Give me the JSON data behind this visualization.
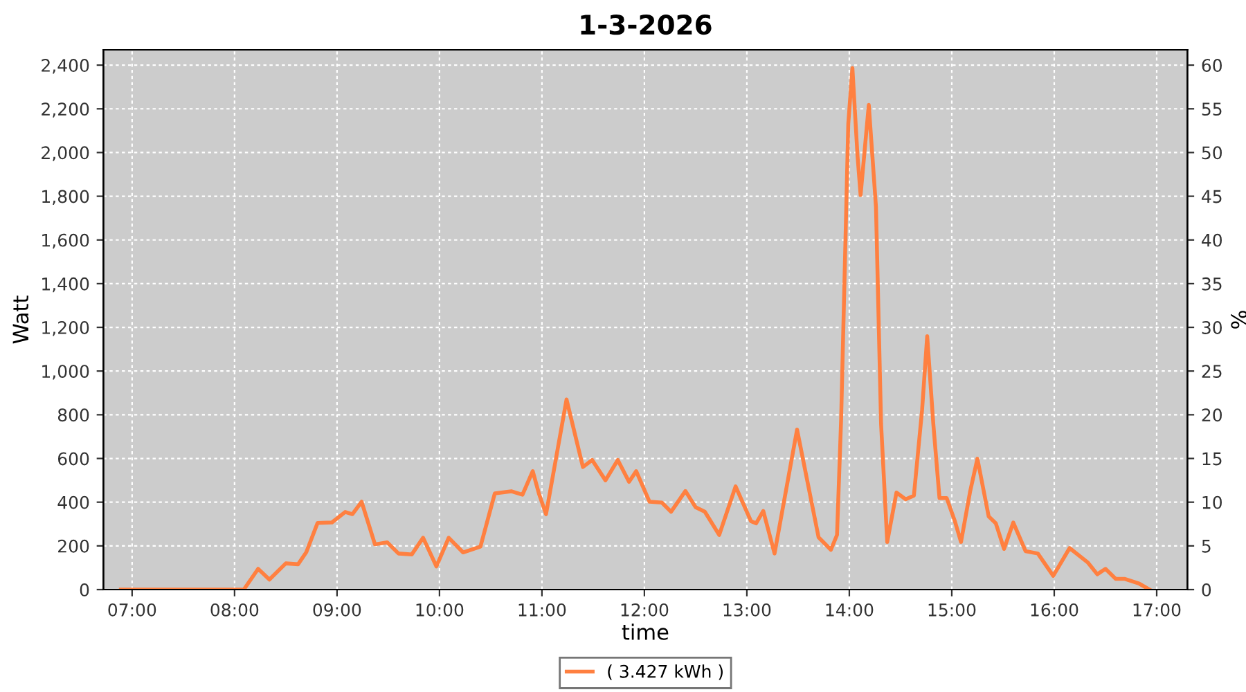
{
  "chart_data": {
    "type": "line",
    "title": "1-3-2026",
    "xlabel": "time",
    "ylabel": "Watt",
    "y2label": "%",
    "x": [
      6.89,
      8.05,
      8.09,
      8.23,
      8.34,
      8.5,
      8.62,
      8.7,
      8.81,
      8.95,
      9.08,
      9.15,
      9.24,
      9.37,
      9.49,
      9.6,
      9.73,
      9.84,
      9.97,
      10.09,
      10.23,
      10.4,
      10.54,
      10.7,
      10.81,
      10.91,
      10.97,
      11.04,
      11.24,
      11.4,
      11.49,
      11.62,
      11.74,
      11.85,
      11.92,
      12.05,
      12.17,
      12.26,
      12.4,
      12.5,
      12.59,
      12.73,
      12.89,
      13.04,
      13.09,
      13.16,
      13.27,
      13.49,
      13.7,
      13.82,
      13.88,
      13.92,
      13.99,
      14.03,
      14.08,
      14.11,
      14.19,
      14.26,
      14.31,
      14.37,
      14.46,
      14.55,
      14.63,
      14.71,
      14.76,
      14.82,
      14.88,
      14.95,
      15.03,
      15.09,
      15.18,
      15.25,
      15.36,
      15.43,
      15.51,
      15.6,
      15.72,
      15.84,
      15.99,
      16.15,
      16.33,
      16.42,
      16.5,
      16.6,
      16.69,
      16.83,
      16.93
    ],
    "series": [
      {
        "name": "( 3.427 kWh )",
        "color": "#ff8040",
        "values": [
          0,
          0,
          0,
          95,
          46,
          120,
          116,
          171,
          305,
          307,
          355,
          345,
          402,
          207,
          216,
          165,
          161,
          237,
          106,
          237,
          170,
          197,
          440,
          450,
          434,
          542,
          440,
          345,
          870,
          561,
          593,
          500,
          593,
          493,
          542,
          402,
          398,
          356,
          451,
          377,
          356,
          250,
          472,
          313,
          303,
          360,
          165,
          732,
          239,
          182,
          250,
          779,
          2133,
          2387,
          1985,
          1805,
          2218,
          1752,
          757,
          218,
          444,
          413,
          430,
          821,
          1160,
          757,
          419,
          419,
          313,
          218,
          451,
          599,
          335,
          303,
          186,
          307,
          176,
          165,
          63,
          190,
          123,
          70,
          95,
          49,
          49,
          27,
          0
        ]
      }
    ],
    "xlim": [
      6.72,
      17.3
    ],
    "xticks": [
      {
        "value": 7,
        "label": "07:00"
      },
      {
        "value": 8,
        "label": "08:00"
      },
      {
        "value": 9,
        "label": "09:00"
      },
      {
        "value": 10,
        "label": "10:00"
      },
      {
        "value": 11,
        "label": "11:00"
      },
      {
        "value": 12,
        "label": "12:00"
      },
      {
        "value": 13,
        "label": "13:00"
      },
      {
        "value": 14,
        "label": "14:00"
      },
      {
        "value": 15,
        "label": "15:00"
      },
      {
        "value": 16,
        "label": "16:00"
      },
      {
        "value": 17,
        "label": "17:00"
      }
    ],
    "ylim": [
      0,
      2470
    ],
    "yticks": [
      0,
      200,
      400,
      600,
      800,
      {
        "value": 1000,
        "label": "1,000"
      },
      {
        "value": 1200,
        "label": "1,200"
      },
      {
        "value": 1400,
        "label": "1,400"
      },
      {
        "value": 1600,
        "label": "1,600"
      },
      {
        "value": 1800,
        "label": "1,800"
      },
      {
        "value": 2000,
        "label": "2,000"
      },
      {
        "value": 2200,
        "label": "2,200"
      },
      {
        "value": 2400,
        "label": "2,400"
      }
    ],
    "y2lim": [
      0,
      61.75
    ],
    "y2ticks": [
      0,
      5,
      10,
      15,
      20,
      25,
      30,
      35,
      40,
      45,
      50,
      55,
      60
    ],
    "grid": true,
    "legend": "bottom",
    "marker": "none",
    "line_style": "solid"
  }
}
